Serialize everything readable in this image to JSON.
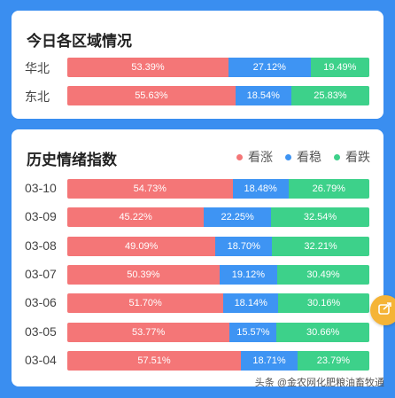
{
  "colors": {
    "up": "#f47677",
    "flat": "#3e94f3",
    "down": "#3dd18a",
    "background": "#3a8ef0"
  },
  "region_card": {
    "title": "今日各区域情况",
    "rows": [
      {
        "label": "华北",
        "up": "53.39%",
        "flat": "27.12%",
        "down": "19.49%"
      },
      {
        "label": "东北",
        "up": "55.63%",
        "flat": "18.54%",
        "down": "25.83%"
      }
    ]
  },
  "history_card": {
    "title": "历史情绪指数",
    "legend": {
      "up": "看涨",
      "flat": "看稳",
      "down": "看跌"
    },
    "rows": [
      {
        "label": "03-10",
        "up": "54.73%",
        "flat": "18.48%",
        "down": "26.79%"
      },
      {
        "label": "03-09",
        "up": "45.22%",
        "flat": "22.25%",
        "down": "32.54%"
      },
      {
        "label": "03-08",
        "up": "49.09%",
        "flat": "18.70%",
        "down": "32.21%"
      },
      {
        "label": "03-07",
        "up": "50.39%",
        "flat": "19.12%",
        "down": "30.49%"
      },
      {
        "label": "03-06",
        "up": "51.70%",
        "flat": "18.14%",
        "down": "30.16%"
      },
      {
        "label": "03-05",
        "up": "53.77%",
        "flat": "15.57%",
        "down": "30.66%"
      },
      {
        "label": "03-04",
        "up": "57.51%",
        "flat": "18.71%",
        "down": "23.79%"
      }
    ]
  },
  "watermark": "头条 @金农网化肥粮油畜牧通",
  "float_button_icon": "share-icon"
}
